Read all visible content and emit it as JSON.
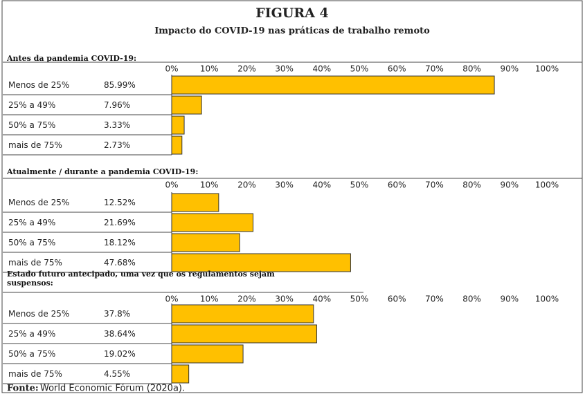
{
  "header": {
    "title": "FIGURA 4",
    "subtitle": "Impacto do COVID-19 nas práticas de trabalho remoto"
  },
  "chart_data": [
    {
      "type": "bar",
      "orientation": "horizontal",
      "title": "Antes da pandemia COVID-19:",
      "categories": [
        "Menos de 25%",
        "25% a 49%",
        "50% a 75%",
        "mais de 75%"
      ],
      "values": [
        85.99,
        7.96,
        3.33,
        2.73
      ],
      "value_labels": [
        "85.99%",
        "7.96%",
        "3.33%",
        "2.73%"
      ],
      "color": "#ffc000",
      "xlim": [
        0,
        100
      ],
      "xticks": [
        {
          "value": 0,
          "label": "0%"
        },
        {
          "value": 10,
          "label": "10%"
        },
        {
          "value": 20,
          "label": "20%"
        },
        {
          "value": 30,
          "label": "30%"
        },
        {
          "value": 40,
          "label": "40%"
        },
        {
          "value": 50,
          "label": "50%"
        },
        {
          "value": 60,
          "label": "60%"
        },
        {
          "value": 70,
          "label": "70%"
        },
        {
          "value": 80,
          "label": "80%"
        },
        {
          "value": 90,
          "label": "90%"
        },
        {
          "value": 100,
          "label": "100%"
        }
      ]
    },
    {
      "type": "bar",
      "orientation": "horizontal",
      "title": "Atualmente / durante a pandemia COVID-19:",
      "categories": [
        "Menos de 25%",
        "25% a 49%",
        "50% a 75%",
        "mais de 75%"
      ],
      "values": [
        12.52,
        21.69,
        18.12,
        47.68
      ],
      "value_labels": [
        "12.52%",
        "21.69%",
        "18.12%",
        "47.68%"
      ],
      "color": "#ffc000",
      "xlim": [
        0,
        100
      ],
      "xticks": [
        {
          "value": 0,
          "label": "0%"
        },
        {
          "value": 10,
          "label": "10%"
        },
        {
          "value": 20,
          "label": "20%"
        },
        {
          "value": 30,
          "label": "30%"
        },
        {
          "value": 40,
          "label": "40%"
        },
        {
          "value": 50,
          "label": "50%"
        },
        {
          "value": 60,
          "label": "60%"
        },
        {
          "value": 70,
          "label": "70%"
        },
        {
          "value": 80,
          "label": "80%"
        },
        {
          "value": 90,
          "label": "90%"
        },
        {
          "value": 100,
          "label": "100%"
        }
      ]
    },
    {
      "type": "bar",
      "orientation": "horizontal",
      "title": "Estado futuro antecipado, uma vez que os regulamentos sejam suspensos:",
      "categories": [
        "Menos de 25%",
        "25% a 49%",
        "50% a 75%",
        "mais de 75%"
      ],
      "values": [
        37.8,
        38.64,
        19.02,
        4.55
      ],
      "value_labels": [
        "37.8%",
        "38.64%",
        "19.02%",
        "4.55%"
      ],
      "color": "#ffc000",
      "xlim": [
        0,
        100
      ],
      "xticks": [
        {
          "value": 0,
          "label": "0%"
        },
        {
          "value": 10,
          "label": "10%"
        },
        {
          "value": 20,
          "label": "20%"
        },
        {
          "value": 30,
          "label": "30%"
        },
        {
          "value": 40,
          "label": "40%"
        },
        {
          "value": 50,
          "label": "50%"
        },
        {
          "value": 60,
          "label": "60%"
        },
        {
          "value": 70,
          "label": "70%"
        },
        {
          "value": 80,
          "label": "80%"
        },
        {
          "value": 90,
          "label": "90%"
        },
        {
          "value": 100,
          "label": "100%"
        }
      ]
    }
  ],
  "source": {
    "label": "Fonte:",
    "text": "World Economic Fórum (2020a)."
  }
}
